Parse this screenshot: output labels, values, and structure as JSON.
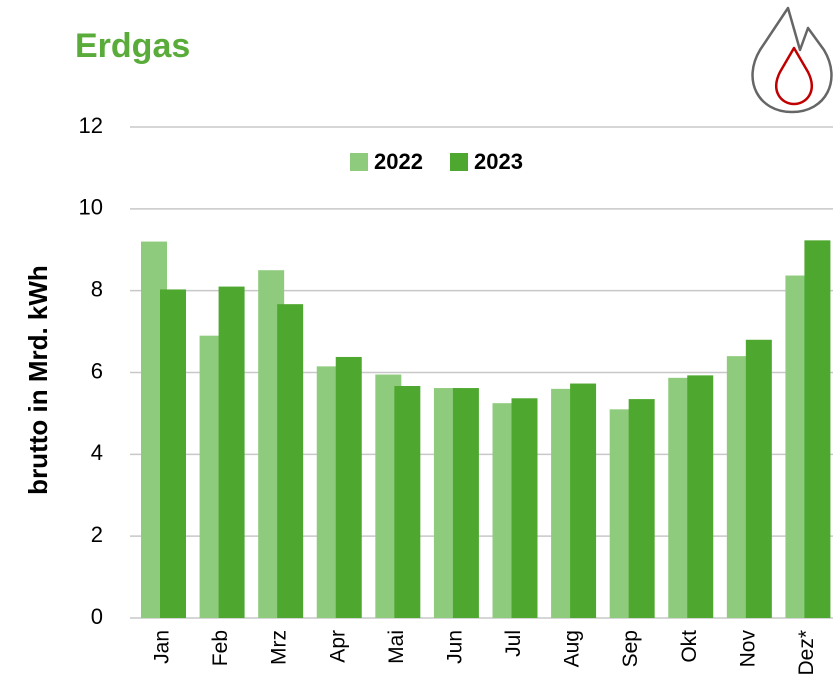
{
  "chart_data": {
    "type": "bar",
    "title": "Erdgas",
    "y_label": "brutto in  Mrd. kWh",
    "categories": [
      "Jan",
      "Feb",
      "Mrz",
      "Apr",
      "Mai",
      "Jun",
      "Jul",
      "Aug",
      "Sep",
      "Okt",
      "Nov",
      "Dez*"
    ],
    "series": [
      {
        "name": "2022",
        "color": "#8fcb7c",
        "values": [
          9.2,
          6.9,
          8.5,
          6.15,
          5.95,
          5.62,
          5.25,
          5.6,
          5.1,
          5.87,
          6.4,
          8.37
        ]
      },
      {
        "name": "2023",
        "color": "#4ea82f",
        "values": [
          8.03,
          8.1,
          7.67,
          6.38,
          5.67,
          5.62,
          5.37,
          5.73,
          5.35,
          5.93,
          6.8,
          9.23
        ]
      }
    ],
    "ylim": [
      0,
      12
    ],
    "yticks": [
      0,
      2,
      4,
      6,
      8,
      10,
      12
    ],
    "grid": true
  }
}
